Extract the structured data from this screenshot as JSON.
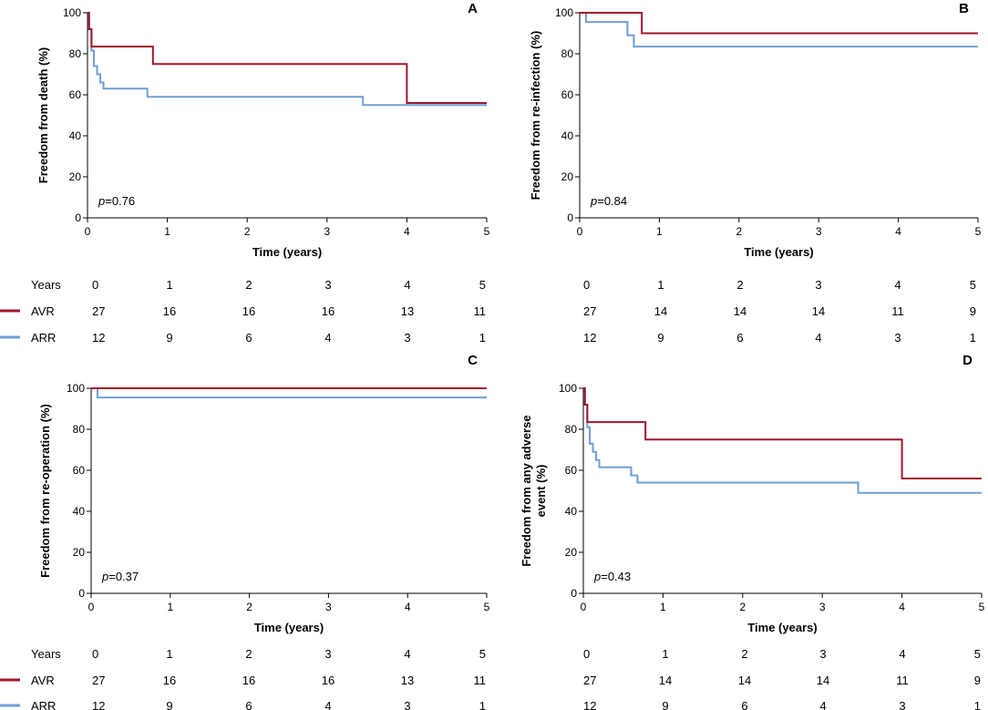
{
  "colors": {
    "avr": "#a3172b",
    "arr": "#6f9fd8"
  },
  "risk_table_header": "Years",
  "legend": {
    "avr_label": "AVR",
    "arr_label": "ARR"
  },
  "chart_data": [
    {
      "panel": "A",
      "type": "line",
      "step": true,
      "ylabel": "Freedom from death (%)",
      "ylabel_lines": [
        "Freedom from death (%)"
      ],
      "xlabel": "Time (years)",
      "xlim": [
        0,
        5
      ],
      "ylim": [
        0,
        100
      ],
      "x_ticks": [
        "0",
        "1",
        "2",
        "3",
        "4",
        "5"
      ],
      "y_ticks": [
        "0",
        "20",
        "40",
        "60",
        "80",
        "100"
      ],
      "p_prefix": "p",
      "p_value": "=0.76",
      "series": [
        {
          "name": "AVR",
          "points": [
            [
              0,
              100
            ],
            [
              0.02,
              92
            ],
            [
              0.05,
              83.5
            ],
            [
              0.82,
              75
            ],
            [
              4.0,
              56
            ],
            [
              5,
              56
            ]
          ]
        },
        {
          "name": "ARR",
          "points": [
            [
              0,
              100
            ],
            [
              0.02,
              92
            ],
            [
              0.05,
              81.5
            ],
            [
              0.08,
              74
            ],
            [
              0.12,
              70
            ],
            [
              0.16,
              66
            ],
            [
              0.2,
              63
            ],
            [
              0.75,
              59
            ],
            [
              3.45,
              55
            ],
            [
              5,
              55
            ]
          ]
        }
      ],
      "risk_table": {
        "years": [
          "0",
          "1",
          "2",
          "3",
          "4",
          "5"
        ],
        "avr": [
          "27",
          "16",
          "16",
          "16",
          "13",
          "11"
        ],
        "arr": [
          "12",
          "9",
          "6",
          "4",
          "3",
          "1"
        ]
      }
    },
    {
      "panel": "B",
      "type": "line",
      "step": true,
      "ylabel": "Freedom from re-infection (%)",
      "ylabel_lines": [
        "Freedom from re-infection (%)"
      ],
      "xlabel": "Time (years)",
      "xlim": [
        0,
        5
      ],
      "ylim": [
        0,
        100
      ],
      "x_ticks": [
        "0",
        "1",
        "2",
        "3",
        "4",
        "5"
      ],
      "y_ticks": [
        "0",
        "20",
        "40",
        "60",
        "80",
        "100"
      ],
      "p_prefix": "p",
      "p_value": "=0.84",
      "series": [
        {
          "name": "AVR",
          "points": [
            [
              0,
              100
            ],
            [
              0.78,
              90
            ],
            [
              5,
              90
            ]
          ]
        },
        {
          "name": "ARR",
          "points": [
            [
              0,
              100
            ],
            [
              0.08,
              95.5
            ],
            [
              0.6,
              89
            ],
            [
              0.68,
              83.5
            ],
            [
              5,
              83.5
            ]
          ]
        }
      ],
      "risk_table": {
        "years": [
          "0",
          "1",
          "2",
          "3",
          "4",
          "5"
        ],
        "avr": [
          "27",
          "14",
          "14",
          "14",
          "11",
          "9"
        ],
        "arr": [
          "12",
          "9",
          "6",
          "4",
          "3",
          "1"
        ]
      }
    },
    {
      "panel": "C",
      "type": "line",
      "step": true,
      "ylabel": "Freedom from re-operation (%)",
      "ylabel_lines": [
        "Freedom from re-operation (%)"
      ],
      "xlabel": "Time (years)",
      "xlim": [
        0,
        5
      ],
      "ylim": [
        0,
        100
      ],
      "x_ticks": [
        "0",
        "1",
        "2",
        "3",
        "4",
        "5"
      ],
      "y_ticks": [
        "0",
        "20",
        "40",
        "60",
        "80",
        "100"
      ],
      "p_prefix": "p",
      "p_value": "=0.37",
      "series": [
        {
          "name": "AVR",
          "points": [
            [
              0,
              100
            ],
            [
              5,
              100
            ]
          ]
        },
        {
          "name": "ARR",
          "points": [
            [
              0,
              100
            ],
            [
              0.08,
              95.5
            ],
            [
              5,
              95.5
            ]
          ]
        }
      ],
      "risk_table": {
        "years": [
          "0",
          "1",
          "2",
          "3",
          "4",
          "5"
        ],
        "avr": [
          "27",
          "16",
          "16",
          "16",
          "13",
          "11"
        ],
        "arr": [
          "12",
          "9",
          "6",
          "4",
          "3",
          "1"
        ]
      }
    },
    {
      "panel": "D",
      "type": "line",
      "step": true,
      "ylabel": "Freedom from any adverse event (%)",
      "ylabel_lines": [
        "Freedom from any adverse",
        "event (%)"
      ],
      "xlabel": "Time (years)",
      "xlim": [
        0,
        5
      ],
      "ylim": [
        0,
        100
      ],
      "x_ticks": [
        "0",
        "1",
        "2",
        "3",
        "4",
        "5"
      ],
      "y_ticks": [
        "0",
        "20",
        "40",
        "60",
        "80",
        "100"
      ],
      "p_prefix": "p",
      "p_value": "=0.43",
      "series": [
        {
          "name": "AVR",
          "points": [
            [
              0,
              100
            ],
            [
              0.02,
              92
            ],
            [
              0.05,
              83.5
            ],
            [
              0.78,
              75
            ],
            [
              4.0,
              56
            ],
            [
              5,
              56
            ]
          ]
        },
        {
          "name": "ARR",
          "points": [
            [
              0,
              100
            ],
            [
              0.02,
              92
            ],
            [
              0.05,
              81
            ],
            [
              0.08,
              73
            ],
            [
              0.12,
              69
            ],
            [
              0.16,
              65
            ],
            [
              0.2,
              61.5
            ],
            [
              0.6,
              57.5
            ],
            [
              0.68,
              54
            ],
            [
              3.45,
              49
            ],
            [
              5,
              49
            ]
          ]
        }
      ],
      "risk_table": {
        "years": [
          "0",
          "1",
          "2",
          "3",
          "4",
          "5"
        ],
        "avr": [
          "27",
          "14",
          "14",
          "14",
          "11",
          "9"
        ],
        "arr": [
          "12",
          "9",
          "6",
          "4",
          "3",
          "1"
        ]
      }
    }
  ]
}
